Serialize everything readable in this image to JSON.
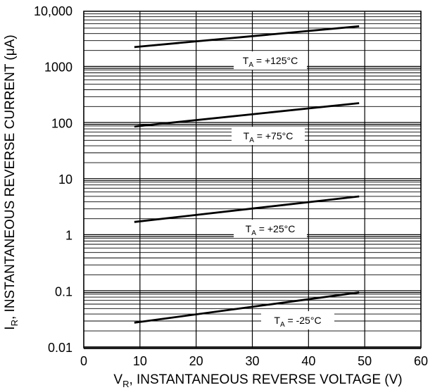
{
  "chart_data": {
    "type": "line",
    "xaxis": {
      "label_main": "V",
      "label_sub": "R",
      "label_rest": ", INSTANTANEOUS REVERSE VOLTAGE (V)",
      "range": [
        0,
        60
      ],
      "ticks": [
        0,
        10,
        20,
        30,
        40,
        50,
        60
      ],
      "tick_labels": [
        "0",
        "10",
        "20",
        "30",
        "40",
        "50",
        "60"
      ]
    },
    "yaxis": {
      "label_main": "I",
      "label_sub": "R",
      "label_rest": ", INSTANTANEOUS REVERSE CURRENT (μA)",
      "scale": "log",
      "range": [
        0.01,
        10000
      ],
      "ticks": [
        0.01,
        0.1,
        1,
        10,
        100,
        1000,
        10000
      ],
      "tick_labels": [
        "0.01",
        "0.1",
        "1",
        "10",
        "100",
        "1000",
        "10,000"
      ]
    },
    "grid": true,
    "legend": "none",
    "series": [
      {
        "label_main": "T",
        "label_sub": "A",
        "label_rest": " = +125°C",
        "x": [
          9,
          49
        ],
        "y": [
          2300,
          5400
        ]
      },
      {
        "label_main": "T",
        "label_sub": "A",
        "label_rest": " = +75°C",
        "x": [
          9,
          49
        ],
        "y": [
          88,
          230
        ]
      },
      {
        "label_main": "T",
        "label_sub": "A",
        "label_rest": " = +25°C",
        "x": [
          9,
          49
        ],
        "y": [
          1.75,
          5.0
        ]
      },
      {
        "label_main": "T",
        "label_sub": "A",
        "label_rest": " = -25°C",
        "x": [
          9,
          49
        ],
        "y": [
          0.028,
          0.097
        ]
      }
    ]
  }
}
